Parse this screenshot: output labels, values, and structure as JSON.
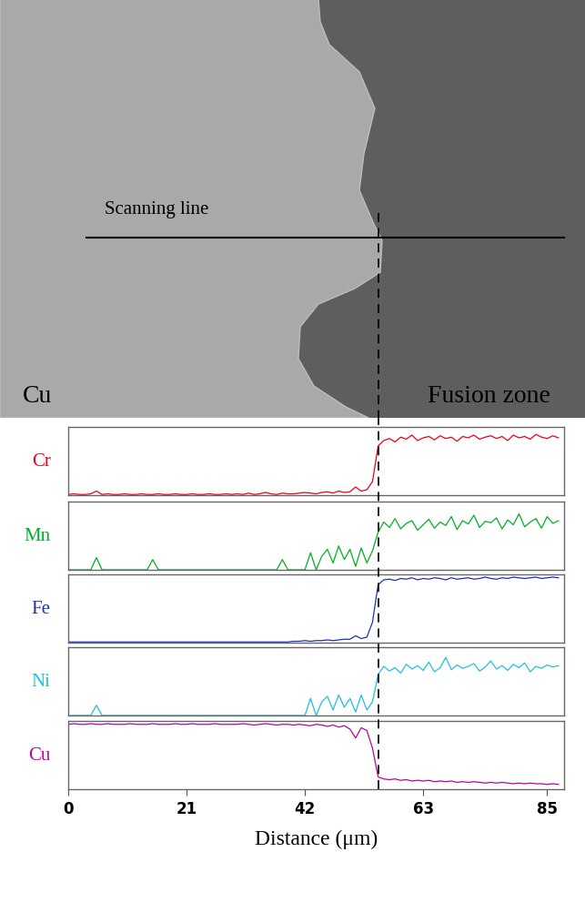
{
  "micrograph": {
    "texts": {
      "scan": "Scanning line",
      "left": "Cu",
      "right": "Fusion zone"
    },
    "interface": 55
  },
  "chart_data": [
    {
      "type": "line",
      "y_label": "Cr",
      "color": "#e8001c",
      "x": [
        0,
        1,
        2,
        3,
        4,
        5,
        6,
        7,
        8,
        9,
        10,
        11,
        12,
        13,
        14,
        15,
        16,
        17,
        18,
        19,
        20,
        21,
        22,
        23,
        24,
        25,
        26,
        27,
        28,
        29,
        30,
        31,
        32,
        33,
        34,
        35,
        36,
        37,
        38,
        39,
        40,
        41,
        42,
        43,
        44,
        45,
        46,
        47,
        48,
        49,
        50,
        51,
        52,
        53,
        54,
        55,
        56,
        57,
        58,
        59,
        60,
        61,
        62,
        63,
        64,
        65,
        66,
        67,
        68,
        69,
        70,
        71,
        72,
        73,
        74,
        75,
        76,
        77,
        78,
        79,
        80,
        81,
        82,
        83,
        84,
        85,
        86,
        87
      ],
      "values": [
        1,
        2,
        1,
        1,
        2,
        6,
        1,
        2,
        1,
        1,
        2,
        1,
        1,
        2,
        1,
        1,
        2,
        1,
        1,
        2,
        1,
        1,
        2,
        1,
        1,
        2,
        1,
        1,
        2,
        1,
        2,
        1,
        3,
        1,
        2,
        4,
        2,
        1,
        3,
        2,
        2,
        3,
        4,
        3,
        2,
        4,
        5,
        3,
        6,
        4,
        5,
        12,
        6,
        8,
        20,
        72,
        80,
        83,
        78,
        85,
        82,
        88,
        80,
        84,
        86,
        81,
        87,
        83,
        85,
        79,
        86,
        84,
        88,
        82,
        85,
        87,
        83,
        86,
        80,
        88,
        84,
        86,
        82,
        89,
        85,
        83,
        87,
        84
      ],
      "xlim": [
        0,
        88
      ],
      "ylim": [
        0,
        100
      ],
      "tick_labels": false
    },
    {
      "type": "line",
      "y_label": "Mn",
      "color": "#00b020",
      "x": [
        0,
        1,
        2,
        3,
        4,
        5,
        6,
        7,
        8,
        9,
        10,
        11,
        12,
        13,
        14,
        15,
        16,
        17,
        18,
        19,
        20,
        21,
        22,
        23,
        24,
        25,
        26,
        27,
        28,
        29,
        30,
        31,
        32,
        33,
        34,
        35,
        36,
        37,
        38,
        39,
        40,
        41,
        42,
        43,
        44,
        45,
        46,
        47,
        48,
        49,
        50,
        51,
        52,
        53,
        54,
        55,
        56,
        57,
        58,
        59,
        60,
        61,
        62,
        63,
        64,
        65,
        66,
        67,
        68,
        69,
        70,
        71,
        72,
        73,
        74,
        75,
        76,
        77,
        78,
        79,
        80,
        81,
        82,
        83,
        84,
        85,
        86,
        87
      ],
      "values": [
        0,
        0,
        0,
        0,
        0,
        18,
        0,
        0,
        0,
        0,
        0,
        0,
        0,
        0,
        0,
        15,
        0,
        0,
        0,
        0,
        0,
        0,
        0,
        0,
        0,
        0,
        0,
        0,
        0,
        0,
        0,
        0,
        0,
        0,
        0,
        0,
        0,
        0,
        15,
        0,
        0,
        0,
        0,
        25,
        0,
        20,
        30,
        10,
        35,
        15,
        30,
        5,
        32,
        10,
        28,
        55,
        70,
        62,
        75,
        60,
        68,
        72,
        58,
        66,
        74,
        61,
        70,
        65,
        78,
        59,
        72,
        67,
        80,
        62,
        71,
        69,
        76,
        60,
        73,
        66,
        82,
        63,
        70,
        75,
        61,
        78,
        68,
        72
      ],
      "xlim": [
        0,
        88
      ],
      "ylim": [
        0,
        100
      ],
      "tick_labels": false
    },
    {
      "type": "line",
      "y_label": "Fe",
      "color": "#2030b8",
      "x": [
        0,
        1,
        2,
        3,
        4,
        5,
        6,
        7,
        8,
        9,
        10,
        11,
        12,
        13,
        14,
        15,
        16,
        17,
        18,
        19,
        20,
        21,
        22,
        23,
        24,
        25,
        26,
        27,
        28,
        29,
        30,
        31,
        32,
        33,
        34,
        35,
        36,
        37,
        38,
        39,
        40,
        41,
        42,
        43,
        44,
        45,
        46,
        47,
        48,
        49,
        50,
        51,
        52,
        53,
        54,
        55,
        56,
        57,
        58,
        59,
        60,
        61,
        62,
        63,
        64,
        65,
        66,
        67,
        68,
        69,
        70,
        71,
        72,
        73,
        74,
        75,
        76,
        77,
        78,
        79,
        80,
        81,
        82,
        83,
        84,
        85,
        86,
        87
      ],
      "values": [
        1,
        1,
        1,
        1,
        1,
        1,
        1,
        1,
        1,
        1,
        1,
        1,
        1,
        1,
        1,
        1,
        1,
        1,
        1,
        1,
        1,
        1,
        1,
        1,
        1,
        1,
        1,
        1,
        1,
        1,
        1,
        1,
        1,
        1,
        1,
        1,
        1,
        1,
        1,
        1,
        2,
        2,
        3,
        2,
        3,
        3,
        4,
        3,
        4,
        5,
        5,
        10,
        6,
        8,
        30,
        85,
        92,
        93,
        91,
        94,
        93,
        95,
        92,
        94,
        93,
        95,
        94,
        92,
        95,
        93,
        94,
        95,
        93,
        94,
        96,
        94,
        93,
        95,
        94,
        96,
        95,
        94,
        95,
        96,
        94,
        95,
        96,
        95
      ],
      "xlim": [
        0,
        88
      ],
      "ylim": [
        0,
        100
      ],
      "tick_labels": false
    },
    {
      "type": "line",
      "y_label": "Ni",
      "color": "#20bfe0",
      "x": [
        0,
        1,
        2,
        3,
        4,
        5,
        6,
        7,
        8,
        9,
        10,
        11,
        12,
        13,
        14,
        15,
        16,
        17,
        18,
        19,
        20,
        21,
        22,
        23,
        24,
        25,
        26,
        27,
        28,
        29,
        30,
        31,
        32,
        33,
        34,
        35,
        36,
        37,
        38,
        39,
        40,
        41,
        42,
        43,
        44,
        45,
        46,
        47,
        48,
        49,
        50,
        51,
        52,
        53,
        54,
        55,
        56,
        57,
        58,
        59,
        60,
        61,
        62,
        63,
        64,
        65,
        66,
        67,
        68,
        69,
        70,
        71,
        72,
        73,
        74,
        75,
        76,
        77,
        78,
        79,
        80,
        81,
        82,
        83,
        84,
        85,
        86,
        87
      ],
      "values": [
        0,
        0,
        0,
        0,
        0,
        15,
        0,
        0,
        0,
        0,
        0,
        0,
        0,
        0,
        0,
        0,
        0,
        0,
        0,
        0,
        0,
        0,
        0,
        0,
        0,
        0,
        0,
        0,
        0,
        0,
        0,
        0,
        0,
        0,
        0,
        0,
        0,
        0,
        0,
        0,
        0,
        0,
        0,
        25,
        0,
        20,
        28,
        8,
        30,
        12,
        25,
        5,
        30,
        8,
        20,
        60,
        72,
        65,
        70,
        62,
        75,
        68,
        73,
        66,
        78,
        64,
        70,
        85,
        67,
        74,
        69,
        72,
        76,
        65,
        71,
        80,
        68,
        73,
        66,
        75,
        70,
        77,
        64,
        72,
        69,
        74,
        71,
        73
      ],
      "xlim": [
        0,
        88
      ],
      "ylim": [
        0,
        100
      ],
      "tick_labels": false
    },
    {
      "type": "line",
      "y_label": "Cu",
      "color": "#c0009a",
      "x_label": "Distance (μm)",
      "x": [
        0,
        1,
        2,
        3,
        4,
        5,
        6,
        7,
        8,
        9,
        10,
        11,
        12,
        13,
        14,
        15,
        16,
        17,
        18,
        19,
        20,
        21,
        22,
        23,
        24,
        25,
        26,
        27,
        28,
        29,
        30,
        31,
        32,
        33,
        34,
        35,
        36,
        37,
        38,
        39,
        40,
        41,
        42,
        43,
        44,
        45,
        46,
        47,
        48,
        49,
        50,
        51,
        52,
        53,
        54,
        55,
        56,
        57,
        58,
        59,
        60,
        61,
        62,
        63,
        64,
        65,
        66,
        67,
        68,
        69,
        70,
        71,
        72,
        73,
        74,
        75,
        76,
        77,
        78,
        79,
        80,
        81,
        82,
        83,
        84,
        85,
        86,
        87
      ],
      "values": [
        95,
        96,
        95,
        95,
        96,
        95,
        95,
        96,
        95,
        95,
        95,
        96,
        95,
        95,
        95,
        96,
        95,
        95,
        95,
        96,
        95,
        95,
        96,
        95,
        95,
        95,
        96,
        95,
        95,
        95,
        95,
        96,
        95,
        94,
        95,
        96,
        95,
        94,
        95,
        95,
        94,
        95,
        94,
        93,
        95,
        94,
        92,
        94,
        91,
        93,
        88,
        75,
        90,
        86,
        60,
        18,
        15,
        14,
        15,
        13,
        14,
        12,
        13,
        12,
        13,
        11,
        12,
        11,
        12,
        10,
        11,
        10,
        11,
        10,
        9,
        10,
        9,
        10,
        9,
        8,
        9,
        8,
        9,
        8,
        8,
        7,
        8,
        7
      ],
      "xlim": [
        0,
        88
      ],
      "xticks": [
        0,
        21,
        42,
        63,
        85
      ],
      "ylim": [
        0,
        100
      ],
      "tick_labels": "x"
    }
  ]
}
